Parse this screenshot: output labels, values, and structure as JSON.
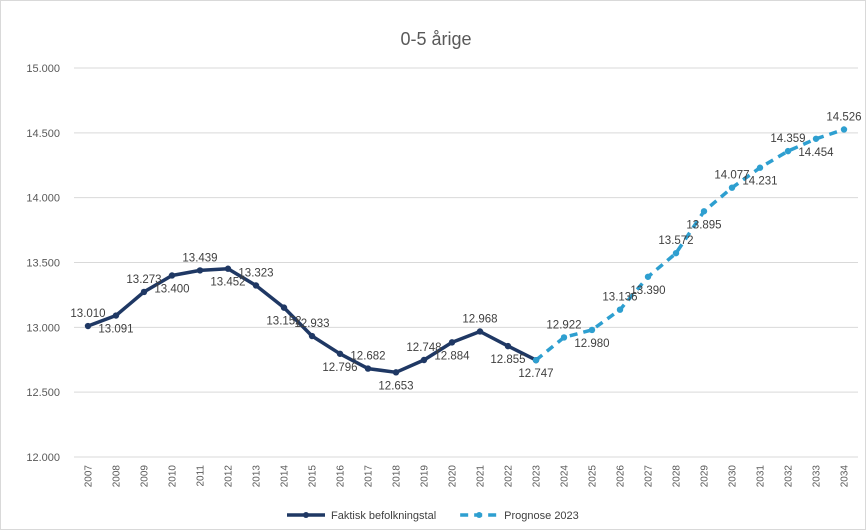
{
  "chart_data": {
    "type": "line",
    "title": "0-5 årige",
    "xlabel": "",
    "ylabel": "",
    "ylim": [
      12000,
      15000
    ],
    "ytick_step": 500,
    "ytick_labels": [
      "12.000",
      "12.500",
      "13.000",
      "13.500",
      "14.000",
      "14.500",
      "15.000"
    ],
    "grid": true,
    "legend_position": "bottom",
    "x": [
      "2007",
      "2008",
      "2009",
      "2010",
      "2011",
      "2012",
      "2013",
      "2014",
      "2015",
      "2016",
      "2017",
      "2018",
      "2019",
      "2020",
      "2021",
      "2022",
      "2023",
      "2024",
      "2025",
      "2026",
      "2027",
      "2028",
      "2029",
      "2030",
      "2031",
      "2032",
      "2033",
      "2034"
    ],
    "series": [
      {
        "name": "Faktisk befolkningstal",
        "color": "#1f3864",
        "style": "solid",
        "x": [
          "2007",
          "2008",
          "2009",
          "2010",
          "2011",
          "2012",
          "2013",
          "2014",
          "2015",
          "2016",
          "2017",
          "2018",
          "2019",
          "2020",
          "2021",
          "2022",
          "2023"
        ],
        "values": [
          13010,
          13091,
          13273,
          13400,
          13439,
          13452,
          13323,
          13152,
          12933,
          12796,
          12682,
          12653,
          12748,
          12884,
          12968,
          12855,
          12747
        ],
        "labels": [
          "13.010",
          "13.091",
          "13.273",
          "13.400",
          "13.439",
          "13.452",
          "13.323",
          "13.152",
          "12.933",
          "12.796",
          "12.682",
          "12.653",
          "12.748",
          "12.884",
          "12.968",
          "12.855",
          "12.747"
        ],
        "label_side": [
          "above",
          "below",
          "above",
          "below",
          "above",
          "below",
          "above",
          "below",
          "above",
          "below",
          "above",
          "below",
          "above",
          "below",
          "above",
          "below",
          "below"
        ]
      },
      {
        "name": "Prognose 2023",
        "color": "#2e9fd0",
        "style": "dashed",
        "x": [
          "2023",
          "2024",
          "2025",
          "2026",
          "2027",
          "2028",
          "2029",
          "2030",
          "2031",
          "2032",
          "2033",
          "2034"
        ],
        "values": [
          12747,
          12922,
          12980,
          13136,
          13390,
          13572,
          13895,
          14077,
          14231,
          14359,
          14454,
          14526
        ],
        "labels": [
          null,
          "12.922",
          "12.980",
          "13.136",
          "13.390",
          "13.572",
          "13.895",
          "14.077",
          "14.231",
          "14.359",
          "14.454",
          "14.526"
        ],
        "label_side": [
          null,
          "above",
          "below",
          "above",
          "below",
          "above",
          "below",
          "above",
          "below",
          "above",
          "below",
          "above"
        ]
      }
    ]
  }
}
